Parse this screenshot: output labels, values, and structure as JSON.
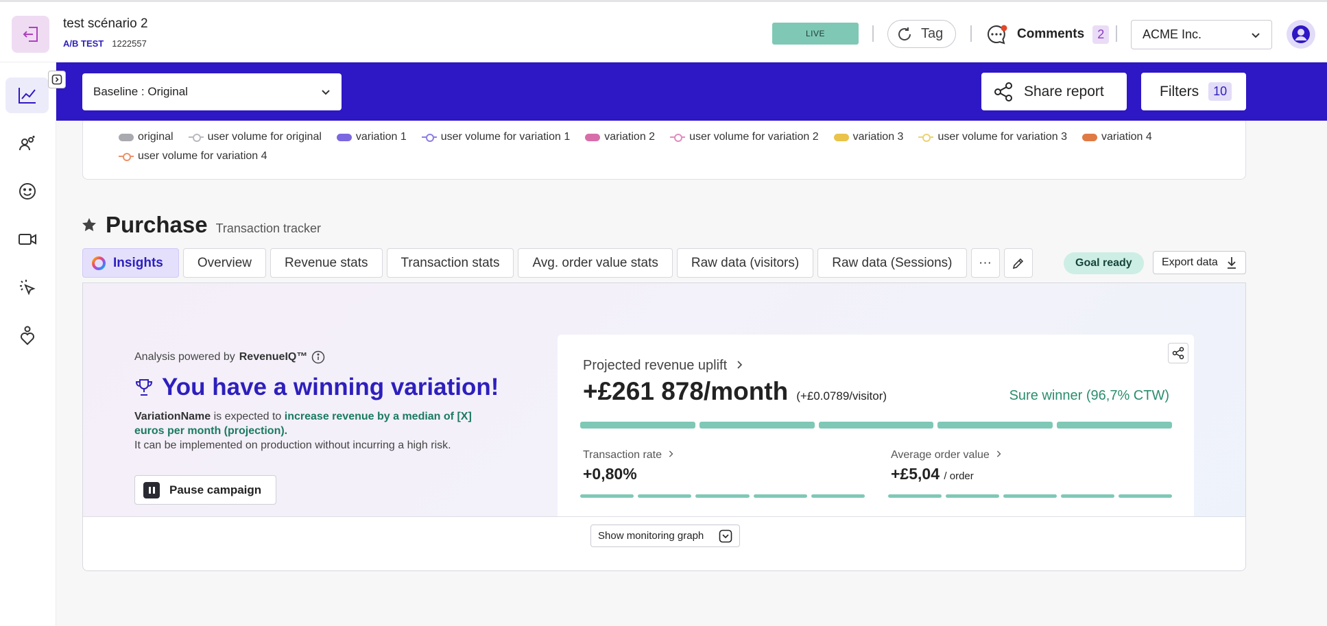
{
  "header": {
    "scenario_title": "test scénario 2",
    "test_type": "A/B TEST",
    "test_id": "1222557",
    "status_badge": "LIVE",
    "tag_label": "Tag",
    "comments_label": "Comments",
    "comments_count": "2",
    "company": "ACME Inc."
  },
  "toolbar": {
    "baseline_select": "Baseline : Original",
    "share_label": "Share report",
    "filters_label": "Filters",
    "filters_count": "10"
  },
  "legend": [
    {
      "label": "original",
      "kind": "bar",
      "color": "#a9a9b0"
    },
    {
      "label": "user volume for original",
      "kind": "line",
      "color": "#b9b9c1"
    },
    {
      "label": "variation 1",
      "kind": "bar",
      "color": "#7b67e0"
    },
    {
      "label": "user volume for variation 1",
      "kind": "line",
      "color": "#8b7ee6"
    },
    {
      "label": "variation 2",
      "kind": "bar",
      "color": "#d86ea9"
    },
    {
      "label": "user volume for variation 2",
      "kind": "line",
      "color": "#e28cc0"
    },
    {
      "label": "variation 3",
      "kind": "bar",
      "color": "#e9c34a"
    },
    {
      "label": "user volume for variation 3",
      "kind": "line",
      "color": "#ecd273"
    },
    {
      "label": "variation 4",
      "kind": "bar",
      "color": "#e07a45"
    },
    {
      "label": "user volume for variation 4",
      "kind": "line",
      "color": "#ee9068"
    }
  ],
  "purchase": {
    "title": "Purchase",
    "subtitle": "Transaction tracker",
    "tabs": [
      "Insights",
      "Overview",
      "Revenue stats",
      "Transaction stats",
      "Avg. order value stats",
      "Raw data (visitors)",
      "Raw data (Sessions)"
    ],
    "more_label": "···",
    "goal_status": "Goal ready",
    "export_label": "Export data"
  },
  "insights": {
    "powered_prefix": "Analysis powered by",
    "powered_brand": "RevenueIQ™",
    "headline": "You have a winning variation!",
    "desc_name": "VariationName",
    "desc_mid": " is expected to ",
    "desc_highlight": "increase revenue by a median of [X] euros per month (projection).",
    "desc_line2": "It can be implemented on production without incurring a high risk.",
    "pause_label": "Pause campaign",
    "projected_label": "Projected revenue uplift",
    "projected_value": "+£261 878/month",
    "projected_per_visitor": "(+£0.0789/visitor)",
    "winner_label": "Sure winner (96,7% CTW)",
    "transaction_rate_label": "Transaction rate",
    "transaction_rate_value": "+0,80%",
    "aov_label": "Average order value",
    "aov_value": "+£5,04",
    "aov_unit": "/ order",
    "monitor_label": "Show monitoring graph"
  },
  "colors": {
    "brand": "#2e17c4",
    "accent_green": "#7fc8b6",
    "winner_text": "#2a8d6e"
  }
}
